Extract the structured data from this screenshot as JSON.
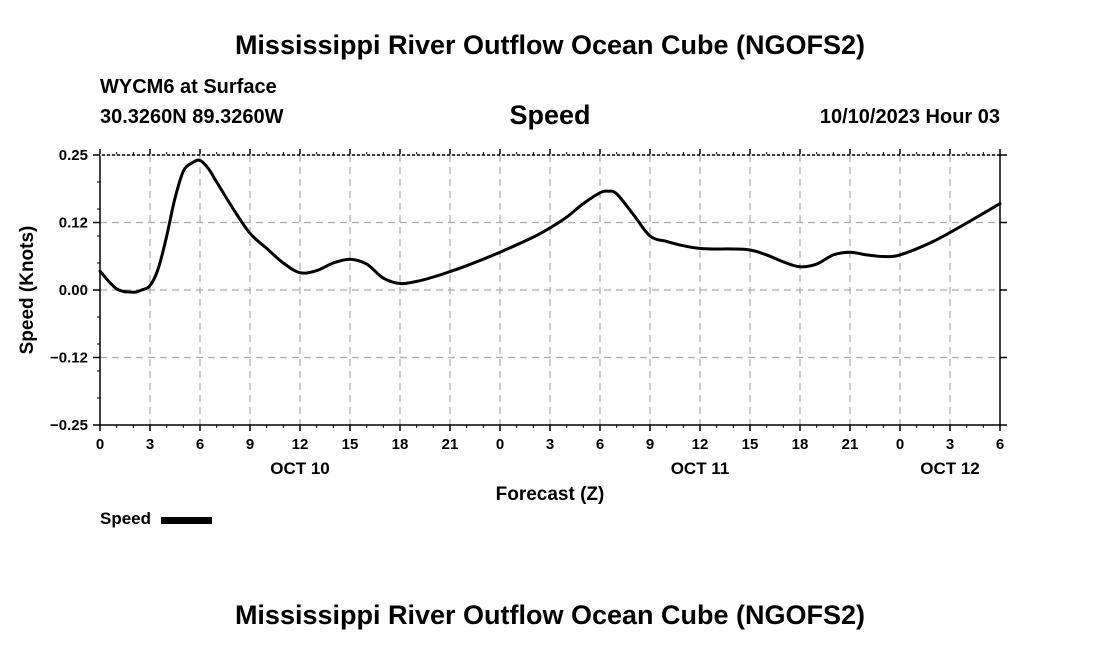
{
  "page": {
    "title": "Mississippi River Outflow Ocean Cube (NGOFS2)",
    "station": "WYCM6 at Surface",
    "coords": "30.3260N  89.3260W",
    "chart_title": "Speed",
    "timestamp": "10/10/2023 Hour 03",
    "footer_title": "Mississippi River Outflow Ocean Cube (NGOFS2)"
  },
  "legend": {
    "label": "Speed",
    "color": "#000000"
  },
  "chart_data": {
    "type": "line",
    "title": "Speed",
    "xlabel": "Forecast (Z)",
    "ylabel": "Speed (Knots)",
    "ylim": [
      -0.25,
      0.25
    ],
    "xlim": [
      0,
      54
    ],
    "grid": true,
    "y_ticks": [
      {
        "value": 0.25,
        "label": "0.25"
      },
      {
        "value": 0.125,
        "label": "0.12"
      },
      {
        "value": 0.0,
        "label": "0.00"
      },
      {
        "value": -0.125,
        "label": "−0.12"
      },
      {
        "value": -0.25,
        "label": "−0.25"
      }
    ],
    "x_ticks": [
      {
        "hour": 0,
        "label": "0"
      },
      {
        "hour": 3,
        "label": "3"
      },
      {
        "hour": 6,
        "label": "6"
      },
      {
        "hour": 9,
        "label": "9"
      },
      {
        "hour": 12,
        "label": "12"
      },
      {
        "hour": 15,
        "label": "15"
      },
      {
        "hour": 18,
        "label": "18"
      },
      {
        "hour": 21,
        "label": "21"
      },
      {
        "hour": 24,
        "label": "0"
      },
      {
        "hour": 27,
        "label": "3"
      },
      {
        "hour": 30,
        "label": "6"
      },
      {
        "hour": 33,
        "label": "9"
      },
      {
        "hour": 36,
        "label": "12"
      },
      {
        "hour": 39,
        "label": "15"
      },
      {
        "hour": 42,
        "label": "18"
      },
      {
        "hour": 45,
        "label": "21"
      },
      {
        "hour": 48,
        "label": "0"
      },
      {
        "hour": 51,
        "label": "3"
      },
      {
        "hour": 54,
        "label": "6"
      }
    ],
    "date_labels": [
      {
        "hour": 12,
        "label": "OCT 10"
      },
      {
        "hour": 36,
        "label": "OCT 11"
      },
      {
        "hour": 51,
        "label": "OCT 12"
      }
    ],
    "series": [
      {
        "name": "Speed",
        "x": [
          0,
          1,
          2,
          2.5,
          3,
          3.5,
          4,
          4.5,
          5,
          5.5,
          6,
          6.5,
          7,
          8,
          9,
          10,
          11,
          12,
          13,
          14,
          15,
          16,
          17,
          18,
          19,
          20,
          21,
          22,
          24,
          26,
          27,
          28,
          29,
          30,
          30.5,
          31,
          32,
          33,
          34,
          35,
          36,
          37,
          38,
          39,
          40,
          41,
          42,
          43,
          44,
          45,
          46,
          47,
          48,
          50,
          52,
          54
        ],
        "y": [
          0.035,
          0.002,
          -0.004,
          0.0,
          0.008,
          0.04,
          0.1,
          0.17,
          0.22,
          0.235,
          0.24,
          0.225,
          0.2,
          0.15,
          0.105,
          0.077,
          0.05,
          0.032,
          0.036,
          0.05,
          0.057,
          0.048,
          0.022,
          0.012,
          0.016,
          0.024,
          0.034,
          0.045,
          0.07,
          0.098,
          0.115,
          0.135,
          0.16,
          0.18,
          0.183,
          0.178,
          0.14,
          0.1,
          0.09,
          0.082,
          0.077,
          0.076,
          0.076,
          0.074,
          0.065,
          0.052,
          0.043,
          0.048,
          0.065,
          0.07,
          0.065,
          0.062,
          0.065,
          0.09,
          0.124,
          0.16
        ]
      }
    ]
  }
}
